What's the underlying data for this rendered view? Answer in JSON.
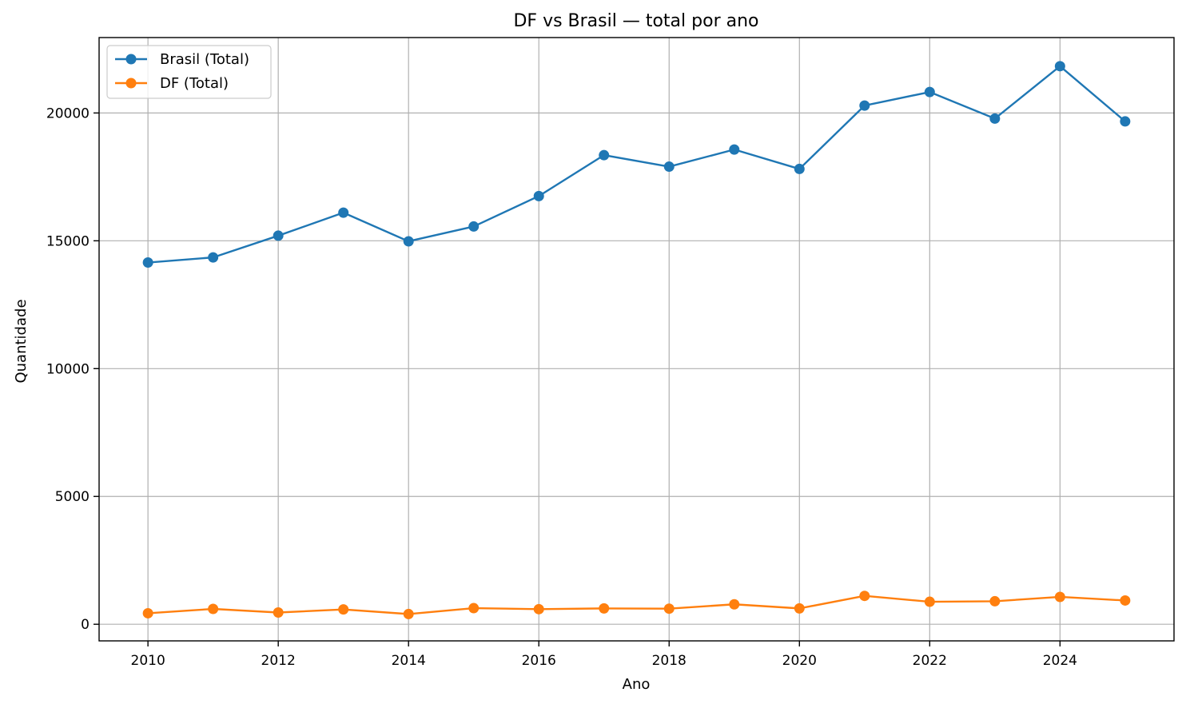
{
  "chart_data": {
    "type": "line",
    "title": "DF vs Brasil — total por ano",
    "xlabel": "Ano",
    "ylabel": "Quantidade",
    "x": [
      2010,
      2011,
      2012,
      2013,
      2014,
      2015,
      2016,
      2017,
      2018,
      2019,
      2020,
      2021,
      2022,
      2023,
      2024,
      2025
    ],
    "xlim": [
      2009.25,
      2025.75
    ],
    "ylim": [
      -650,
      22950
    ],
    "xticks": [
      2010,
      2012,
      2014,
      2016,
      2018,
      2020,
      2022,
      2024
    ],
    "yticks": [
      0,
      5000,
      10000,
      15000,
      20000
    ],
    "grid": true,
    "legend_position": "upper-left",
    "series": [
      {
        "name": "Brasil (Total)",
        "color": "#1f77b4",
        "marker": "circle",
        "values": [
          14150,
          14350,
          15200,
          16100,
          14980,
          15560,
          16750,
          18350,
          17900,
          18570,
          17810,
          20290,
          20820,
          19780,
          21830,
          19670
        ]
      },
      {
        "name": "DF (Total)",
        "color": "#ff7f0e",
        "marker": "circle",
        "values": [
          430,
          600,
          460,
          580,
          400,
          630,
          590,
          620,
          610,
          780,
          620,
          1110,
          880,
          900,
          1070,
          930
        ]
      }
    ]
  }
}
